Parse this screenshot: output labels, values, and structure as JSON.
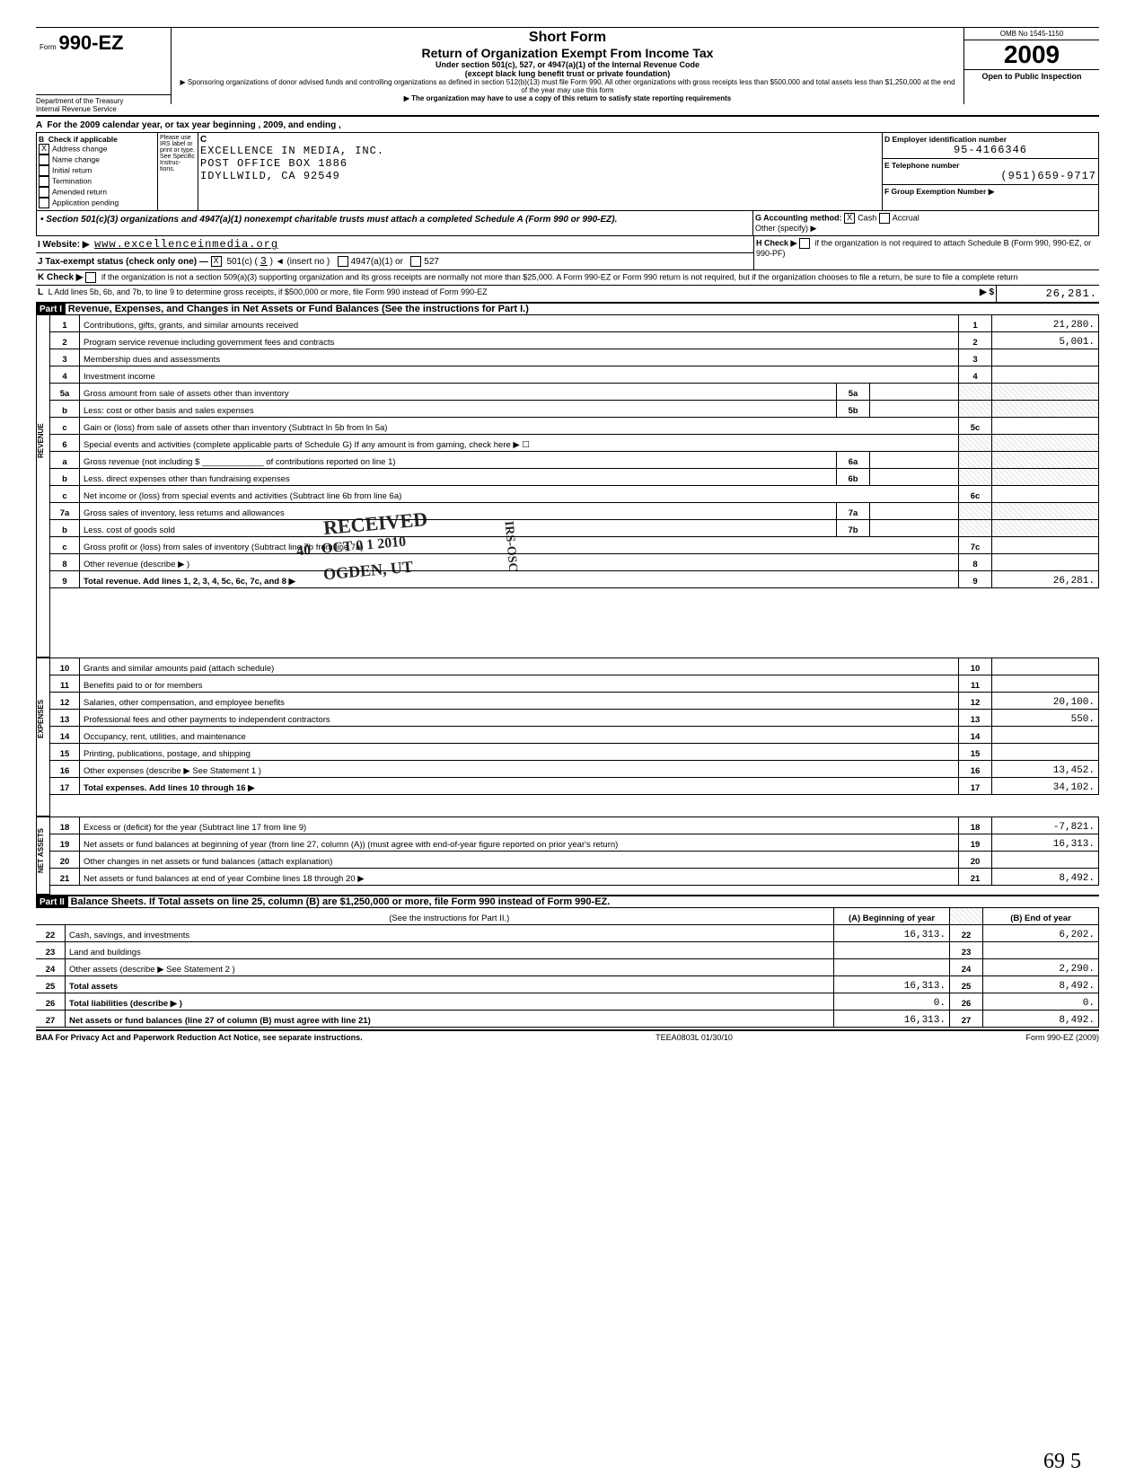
{
  "header": {
    "form_no_prefix": "Form",
    "form_no": "990-EZ",
    "dept": "Department of the Treasury",
    "irs": "Internal Revenue Service",
    "title1": "Short Form",
    "title2": "Return of Organization Exempt From Income Tax",
    "sub1": "Under section 501(c), 527, or 4947(a)(1) of the Internal Revenue Code",
    "sub2": "(except black lung benefit trust or private foundation)",
    "note1": "▶ Sponsoring organizations of donor advised funds and controlling organizations as defined in section 512(b)(13) must file Form 990. All other organizations with gross receipts less than $500,000 and total assets less than $1,250,000 at the end of the year may use this form",
    "note2": "▶ The organization may have to use a copy of this return to satisfy state reporting requirements",
    "omb": "OMB No 1545-1150",
    "year": "2009",
    "open": "Open to Public Inspection"
  },
  "lineA": "For the 2009 calendar year, or tax year beginning                          , 2009, and ending                          ,",
  "sectionB": {
    "label": "Check if applicable",
    "items": [
      "Address change",
      "Name change",
      "Initial return",
      "Termination",
      "Amended return",
      "Application pending"
    ],
    "checked": [
      true,
      false,
      false,
      false,
      false,
      false
    ],
    "please": "Please use IRS label or print or type. See Specific Instruc-tions."
  },
  "sectionC": {
    "label": "C",
    "name": "EXCELLENCE IN MEDIA, INC.",
    "addr1": "POST OFFICE BOX 1886",
    "addr2": "IDYLLWILD, CA 92549"
  },
  "sectionD": {
    "label": "D  Employer identification number",
    "value": "95-4166346"
  },
  "sectionE": {
    "label": "E  Telephone number",
    "value": "(951)659-9717"
  },
  "sectionF": {
    "label": "F  Group Exemption Number ▶",
    "value": ""
  },
  "boxNote": "• Section 501(c)(3) organizations and 4947(a)(1) nonexempt charitable trusts must attach a completed Schedule A (Form 990 or 990-EZ).",
  "sectionG": {
    "label": "G  Accounting method:",
    "cash": "Cash",
    "accrual": "Accrual",
    "other": "Other (specify) ▶",
    "cash_checked": true
  },
  "sectionH": {
    "label": "H  Check ▶",
    "text": "if the organization is not required to attach Schedule B (Form 990, 990-EZ, or 990-PF)"
  },
  "sectionI": {
    "label": "I   Website: ▶",
    "value": "www.excellenceinmedia.org"
  },
  "sectionJ": {
    "label": "J   Tax-exempt status (check only one) —",
    "opt501c": "501(c) (",
    "num": "3",
    "paren": ") ◄ (insert no )",
    "opt4947": "4947(a)(1) or",
    "opt527": "527",
    "checked_501c": true
  },
  "sectionK": {
    "label": "K  Check ▶",
    "text": "if the organization is not a section 509(a)(3) supporting organization and its gross receipts are normally not more than $25,000. A Form 990-EZ or Form 990 return is not required, but if the organization chooses to file a return, be sure to file a complete return"
  },
  "sectionL": {
    "label": "L  Add lines 5b, 6b, and 7b, to line 9 to determine gross receipts, if $500,000 or more, file Form 990 instead of Form 990-EZ",
    "arrow": "▶ $",
    "value": "26,281."
  },
  "part1": {
    "title": "Part I",
    "heading": "Revenue, Expenses, and Changes in Net Assets or Fund Balances (See the instructions for Part I.)",
    "vert_rev": "REVENUE",
    "vert_exp": "EXPENSES",
    "vert_net": "NET ASSETS",
    "lines": [
      {
        "n": "1",
        "d": "Contributions, gifts, grants, and similar amounts received",
        "b": "1",
        "a": "21,280."
      },
      {
        "n": "2",
        "d": "Program service revenue including government fees and contracts",
        "b": "2",
        "a": "5,001."
      },
      {
        "n": "3",
        "d": "Membership dues and assessments",
        "b": "3",
        "a": ""
      },
      {
        "n": "4",
        "d": "Investment income",
        "b": "4",
        "a": ""
      },
      {
        "n": "5a",
        "d": "Gross amount from sale of assets other than inventory",
        "mid": "5a",
        "midv": "",
        "shade": true
      },
      {
        "n": "b",
        "d": "Less: cost or other basis and sales expenses",
        "mid": "5b",
        "midv": "",
        "shade": true
      },
      {
        "n": "c",
        "d": "Gain or (loss) from sale of assets other than inventory (Subtract ln 5b from ln 5a)",
        "b": "5c",
        "a": ""
      },
      {
        "n": "6",
        "d": "Special events and activities (complete applicable parts of Schedule G)  If any amount is from gaming, check here      ▶ ☐",
        "shade": true
      },
      {
        "n": "a",
        "d": "Gross revenue (not including $ _____________ of contributions reported on line 1)",
        "mid": "6a",
        "midv": "",
        "shade": true
      },
      {
        "n": "b",
        "d": "Less. direct expenses other than fundraising expenses",
        "mid": "6b",
        "midv": "",
        "shade": true
      },
      {
        "n": "c",
        "d": "Net income or (loss) from special events and activities (Subtract line 6b from line 6a)",
        "b": "6c",
        "a": ""
      },
      {
        "n": "7a",
        "d": "Gross sales of inventory, less returns and allowances",
        "mid": "7a",
        "midv": "",
        "shade": true
      },
      {
        "n": "b",
        "d": "Less. cost of goods sold",
        "mid": "7b",
        "midv": "",
        "shade": true
      },
      {
        "n": "c",
        "d": "Gross profit or (loss) from sales of inventory (Subtract line 7b from line 7a)",
        "b": "7c",
        "a": ""
      },
      {
        "n": "8",
        "d": "Other revenue (describe ▶                                                                              )",
        "b": "8",
        "a": ""
      },
      {
        "n": "9",
        "d": "Total revenue. Add lines 1, 2, 3, 4, 5c, 6c, 7c, and 8                                              ▶",
        "b": "9",
        "a": "26,281.",
        "bold": true
      },
      {
        "n": "10",
        "d": "Grants and similar amounts paid (attach schedule)",
        "b": "10",
        "a": ""
      },
      {
        "n": "11",
        "d": "Benefits paid to or for members",
        "b": "11",
        "a": ""
      },
      {
        "n": "12",
        "d": "Salaries, other compensation, and employee benefits",
        "b": "12",
        "a": "20,100."
      },
      {
        "n": "13",
        "d": "Professional fees and other payments to independent contractors",
        "b": "13",
        "a": "550."
      },
      {
        "n": "14",
        "d": "Occupancy, rent, utilities, and maintenance",
        "b": "14",
        "a": ""
      },
      {
        "n": "15",
        "d": "Printing, publications, postage, and shipping",
        "b": "15",
        "a": ""
      },
      {
        "n": "16",
        "d": "Other expenses (describe ▶  See Statement 1                                            )",
        "b": "16",
        "a": "13,452."
      },
      {
        "n": "17",
        "d": "Total expenses. Add lines 10 through 16                                                         ▶",
        "b": "17",
        "a": "34,102.",
        "bold": true
      },
      {
        "n": "18",
        "d": "Excess or (deficit) for the year (Subtract line 17 from line 9)",
        "b": "18",
        "a": "-7,821."
      },
      {
        "n": "19",
        "d": "Net assets or fund balances at beginning of year (from line 27, column (A)) (must agree with end-of-year figure reported on prior year's return)",
        "b": "19",
        "a": "16,313."
      },
      {
        "n": "20",
        "d": "Other changes in net assets or fund balances (attach explanation)",
        "b": "20",
        "a": ""
      },
      {
        "n": "21",
        "d": "Net assets or fund balances at end of year  Combine lines 18 through 20                        ▶",
        "b": "21",
        "a": "8,492."
      }
    ]
  },
  "part2": {
    "title": "Part II",
    "heading": "Balance Sheets. If Total assets on line 25, column (B) are $1,250,000 or more, file Form 990 instead of Form 990-EZ.",
    "instr": "(See the instructions for Part II.)",
    "colA": "(A) Beginning of year",
    "colB": "(B) End of year",
    "rows": [
      {
        "n": "22",
        "d": "Cash, savings, and investments",
        "a": "16,313.",
        "b": "22",
        "c": "6,202."
      },
      {
        "n": "23",
        "d": "Land and buildings",
        "a": "",
        "b": "23",
        "c": ""
      },
      {
        "n": "24",
        "d": "Other assets (describe ▶  See Statement 2                        )",
        "a": "",
        "b": "24",
        "c": "2,290."
      },
      {
        "n": "25",
        "d": "Total assets",
        "a": "16,313.",
        "b": "25",
        "c": "8,492.",
        "bold": true
      },
      {
        "n": "26",
        "d": "Total liabilities (describe ▶                                                    )",
        "a": "0.",
        "b": "26",
        "c": "0.",
        "bold": true
      },
      {
        "n": "27",
        "d": "Net assets or fund balances (line 27 of column (B) must agree with line 21)",
        "a": "16,313.",
        "b": "27",
        "c": "8,492.",
        "bold": true
      }
    ]
  },
  "footer": {
    "baa": "BAA  For Privacy Act and Paperwork Reduction Act Notice, see separate instructions.",
    "code": "TEEA0803L  01/30/10",
    "form": "Form 990-EZ (2009)"
  },
  "stamps": {
    "received": "RECEIVED",
    "date": "OCT 0 1 2010",
    "ogden": "OGDEN, UT",
    "irs": "IRS-OSC",
    "code40": "40"
  },
  "handwritten": "69   5"
}
